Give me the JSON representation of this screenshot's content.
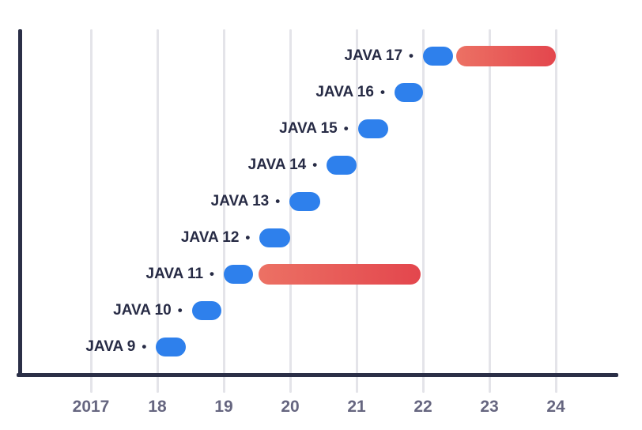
{
  "chart_data": {
    "type": "bar",
    "subtype": "gantt-timeline",
    "title": "",
    "xlabel": "",
    "ylabel": "",
    "legend": "none",
    "grid": "vertical-only",
    "bullet": "•",
    "x_ticks": [
      "2017",
      "18",
      "19",
      "20",
      "21",
      "22",
      "23",
      "24"
    ],
    "x_tick_years": [
      2017,
      2018,
      2019,
      2020,
      2021,
      2022,
      2023,
      2024
    ],
    "rows": [
      {
        "label": "JAVA 17",
        "bars": [
          {
            "kind": "release",
            "start": 2022.0,
            "end": 2022.45
          },
          {
            "kind": "extended-support",
            "start": 2022.5,
            "end": 2024.0
          }
        ]
      },
      {
        "label": "JAVA 16",
        "bars": [
          {
            "kind": "release",
            "start": 2021.57,
            "end": 2022.0
          }
        ]
      },
      {
        "label": "JAVA 15",
        "bars": [
          {
            "kind": "release",
            "start": 2021.02,
            "end": 2021.48
          }
        ]
      },
      {
        "label": "JAVA 14",
        "bars": [
          {
            "kind": "release",
            "start": 2020.55,
            "end": 2021.0
          }
        ]
      },
      {
        "label": "JAVA 13",
        "bars": [
          {
            "kind": "release",
            "start": 2019.99,
            "end": 2020.45
          }
        ]
      },
      {
        "label": "JAVA 12",
        "bars": [
          {
            "kind": "release",
            "start": 2019.54,
            "end": 2020.0
          }
        ]
      },
      {
        "label": "JAVA 11",
        "bars": [
          {
            "kind": "release",
            "start": 2019.0,
            "end": 2019.44
          },
          {
            "kind": "extended-support",
            "start": 2019.52,
            "end": 2021.97
          }
        ]
      },
      {
        "label": "JAVA 10",
        "bars": [
          {
            "kind": "release",
            "start": 2018.52,
            "end": 2018.96
          }
        ]
      },
      {
        "label": "JAVA 9",
        "bars": [
          {
            "kind": "release",
            "start": 2017.98,
            "end": 2018.43
          }
        ]
      }
    ],
    "colors": {
      "blue": "#2E80EC",
      "red_gradient_start": "#EC7164",
      "red_gradient_end": "#E3464D",
      "axis": "#2B2F47",
      "grid": "#E4E4E9",
      "tick_text": "#666680",
      "label_text": "#272B45"
    }
  }
}
